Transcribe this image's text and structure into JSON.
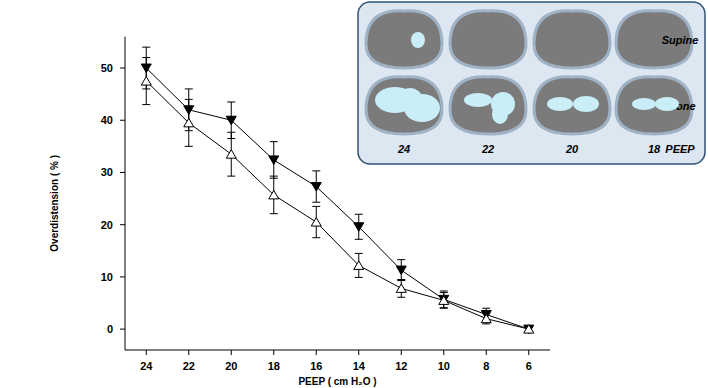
{
  "chart_data": {
    "type": "line",
    "x_label": "PEEP ( cm H₂O )",
    "y_label": "Overdistension ( % )",
    "x": [
      24,
      22,
      20,
      18,
      16,
      14,
      12,
      10,
      8,
      6
    ],
    "series": [
      {
        "color": "#000000",
        "marker": "triangle-down-filled",
        "values": [
          50,
          42,
          40,
          32.4,
          27.3,
          19.6,
          11.3,
          5.7,
          2.8,
          0
        ],
        "errors": [
          4,
          4,
          3.5,
          3.5,
          3,
          2.4,
          2,
          1.6,
          1.2,
          0.5
        ]
      },
      {
        "color": "#000000",
        "marker": "triangle-up-open",
        "values": [
          47.5,
          39.5,
          33.5,
          25.7,
          20.5,
          12.2,
          7.8,
          5.5,
          2,
          0
        ],
        "errors": [
          4.5,
          4.5,
          4.2,
          3.6,
          3,
          2.3,
          1.7,
          1.5,
          1,
          0.4
        ]
      }
    ],
    "xlim": [
      25,
      5
    ],
    "xticks": [
      24,
      22,
      20,
      18,
      16,
      14,
      12,
      10,
      8,
      6
    ],
    "ylim": [
      -4,
      56
    ],
    "yticks": [
      0,
      10,
      20,
      30,
      40,
      50
    ],
    "grid": false
  },
  "inset": {
    "rows": [
      "Supine",
      "Prone"
    ],
    "columns": [
      24,
      22,
      20,
      18
    ],
    "column_label": "PEEP"
  }
}
